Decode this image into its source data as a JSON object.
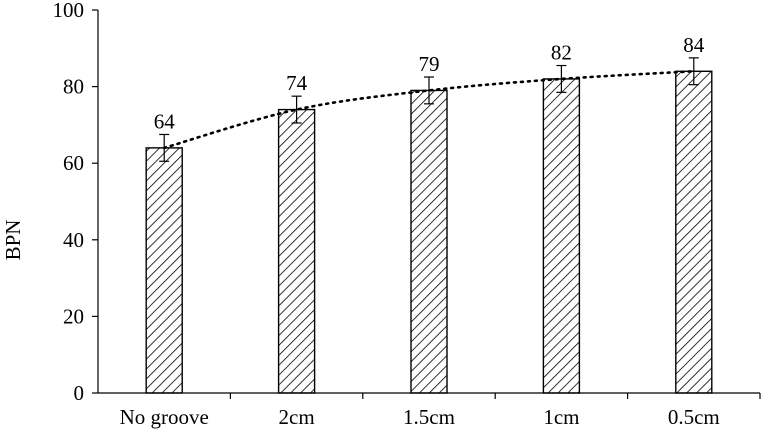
{
  "chart_data": {
    "type": "bar",
    "title": "",
    "xlabel": "",
    "ylabel": "BPN",
    "ylim": [
      0,
      100
    ],
    "yticks": [
      0,
      20,
      40,
      60,
      80,
      100
    ],
    "categories": [
      "No groove",
      "2cm",
      "1.5cm",
      "1cm",
      "0.5cm"
    ],
    "values": [
      64,
      74,
      79,
      82,
      84
    ],
    "error": [
      3.5,
      3.5,
      3.5,
      3.5,
      3.5
    ],
    "data_labels": [
      "64",
      "74",
      "79",
      "82",
      "84"
    ],
    "bar_fill": "hatched",
    "trendline": "dotted",
    "grid": false,
    "legend": "none"
  },
  "colors": {
    "bar_stroke": "#000000",
    "hatch": "#000000",
    "axis": "#000000",
    "trendline": "#000000"
  }
}
